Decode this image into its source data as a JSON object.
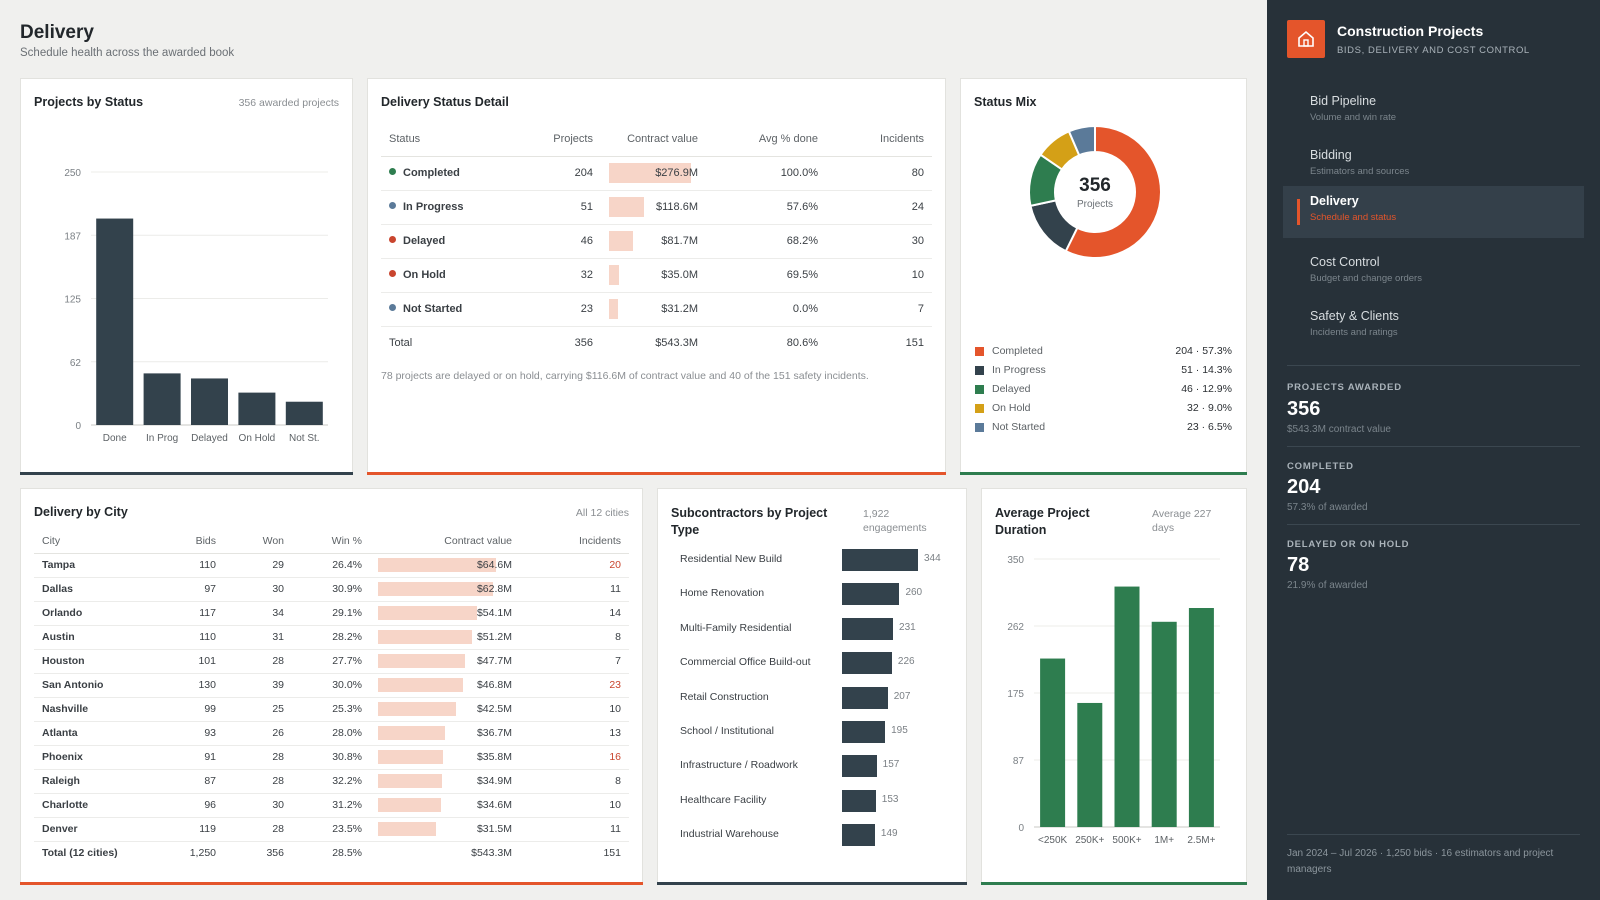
{
  "page": {
    "title": "Delivery",
    "subtitle": "Schedule health across the awarded book"
  },
  "colors": {
    "accent": "#e4552b",
    "dark": "#33424c",
    "green": "#2e7d4f",
    "sidebar": "#273139"
  },
  "projects_by_status": {
    "title": "Projects by Status",
    "note": "356 awarded projects",
    "chart_data": {
      "type": "bar",
      "categories": [
        "Done",
        "In Prog",
        "Delayed",
        "On Hold",
        "Not St."
      ],
      "values": [
        204,
        51,
        46,
        32,
        23
      ],
      "yticks": [
        "250",
        "187",
        "125",
        "62",
        "0"
      ],
      "ylim": [
        0,
        250
      ],
      "grid": true
    }
  },
  "delivery_detail": {
    "title": "Delivery Status Detail",
    "headers": [
      "Status",
      "Projects",
      "Contract value",
      "Avg % done",
      "Incidents"
    ],
    "rows": [
      {
        "status": "Completed",
        "dot": "#2e7d4f",
        "projects": "204",
        "value": "$276.9M",
        "value_num": 276.9,
        "done": "100.0%",
        "incidents": "80"
      },
      {
        "status": "In Progress",
        "dot": "#5b7a99",
        "projects": "51",
        "value": "$118.6M",
        "value_num": 118.6,
        "done": "57.6%",
        "incidents": "24"
      },
      {
        "status": "Delayed",
        "dot": "#c9452e",
        "projects": "46",
        "value": "$81.7M",
        "value_num": 81.7,
        "done": "68.2%",
        "incidents": "30"
      },
      {
        "status": "On Hold",
        "dot": "#c9452e",
        "projects": "32",
        "value": "$35.0M",
        "value_num": 35.0,
        "done": "69.5%",
        "incidents": "10"
      },
      {
        "status": "Not Started",
        "dot": "#5b7a99",
        "projects": "23",
        "value": "$31.2M",
        "value_num": 31.2,
        "done": "0.0%",
        "incidents": "7"
      }
    ],
    "total": {
      "label": "Total",
      "projects": "356",
      "value": "$543.3M",
      "done": "80.6%",
      "incidents": "151"
    },
    "footnote": "78 projects are delayed or on hold, carrying $116.6M of contract value and 40 of the 151 safety incidents."
  },
  "status_mix": {
    "title": "Status Mix",
    "center_value": "356",
    "center_label": "Projects",
    "chart_data": {
      "type": "pie",
      "labels": [
        "Completed",
        "In Progress",
        "Delayed",
        "On Hold",
        "Not Started"
      ],
      "values": [
        204,
        51,
        46,
        32,
        23
      ],
      "colors": [
        "#e4552b",
        "#33424c",
        "#2e7d4f",
        "#d4a017",
        "#5b7a99"
      ]
    },
    "legend": [
      {
        "label": "Completed",
        "value": "204 · 57.3%",
        "color": "#e4552b"
      },
      {
        "label": "In Progress",
        "value": "51 · 14.3%",
        "color": "#33424c"
      },
      {
        "label": "Delayed",
        "value": "46 · 12.9%",
        "color": "#2e7d4f"
      },
      {
        "label": "On Hold",
        "value": "32 · 9.0%",
        "color": "#d4a017"
      },
      {
        "label": "Not Started",
        "value": "23 · 6.5%",
        "color": "#5b7a99"
      }
    ]
  },
  "city": {
    "title": "Delivery by City",
    "note": "All 12 cities",
    "headers": [
      "City",
      "Bids",
      "Won",
      "Win %",
      "Contract value",
      "Incidents"
    ],
    "rows": [
      {
        "city": "Tampa",
        "bids": "110",
        "won": "29",
        "win": "26.4%",
        "value": "$64.6M",
        "value_num": 64.6,
        "incidents": "20",
        "hi": true
      },
      {
        "city": "Dallas",
        "bids": "97",
        "won": "30",
        "win": "30.9%",
        "value": "$62.8M",
        "value_num": 62.8,
        "incidents": "11",
        "hi": false
      },
      {
        "city": "Orlando",
        "bids": "117",
        "won": "34",
        "win": "29.1%",
        "value": "$54.1M",
        "value_num": 54.1,
        "incidents": "14",
        "hi": false
      },
      {
        "city": "Austin",
        "bids": "110",
        "won": "31",
        "win": "28.2%",
        "value": "$51.2M",
        "value_num": 51.2,
        "incidents": "8",
        "hi": false
      },
      {
        "city": "Houston",
        "bids": "101",
        "won": "28",
        "win": "27.7%",
        "value": "$47.7M",
        "value_num": 47.7,
        "incidents": "7",
        "hi": false
      },
      {
        "city": "San Antonio",
        "bids": "130",
        "won": "39",
        "win": "30.0%",
        "value": "$46.8M",
        "value_num": 46.8,
        "incidents": "23",
        "hi": true
      },
      {
        "city": "Nashville",
        "bids": "99",
        "won": "25",
        "win": "25.3%",
        "value": "$42.5M",
        "value_num": 42.5,
        "incidents": "10",
        "hi": false
      },
      {
        "city": "Atlanta",
        "bids": "93",
        "won": "26",
        "win": "28.0%",
        "value": "$36.7M",
        "value_num": 36.7,
        "incidents": "13",
        "hi": false
      },
      {
        "city": "Phoenix",
        "bids": "91",
        "won": "28",
        "win": "30.8%",
        "value": "$35.8M",
        "value_num": 35.8,
        "incidents": "16",
        "hi": true
      },
      {
        "city": "Raleigh",
        "bids": "87",
        "won": "28",
        "win": "32.2%",
        "value": "$34.9M",
        "value_num": 34.9,
        "incidents": "8",
        "hi": false
      },
      {
        "city": "Charlotte",
        "bids": "96",
        "won": "30",
        "win": "31.2%",
        "value": "$34.6M",
        "value_num": 34.6,
        "incidents": "10",
        "hi": false
      },
      {
        "city": "Denver",
        "bids": "119",
        "won": "28",
        "win": "23.5%",
        "value": "$31.5M",
        "value_num": 31.5,
        "incidents": "11",
        "hi": false
      }
    ],
    "total": {
      "city": "Total (12 cities)",
      "bids": "1,250",
      "won": "356",
      "win": "28.5%",
      "value": "$543.3M",
      "incidents": "151"
    }
  },
  "subs": {
    "title": "Subcontractors by Project Type",
    "note": "1,922 engagements",
    "chart_data": {
      "type": "bar",
      "orientation": "horizontal",
      "categories": [
        "Residential New Build",
        "Home Renovation",
        "Multi-Family Residential",
        "Commercial Office Build-out",
        "Retail Construction",
        "School / Institutional",
        "Infrastructure / Roadwork",
        "Healthcare Facility",
        "Industrial Warehouse"
      ],
      "values": [
        344,
        260,
        231,
        226,
        207,
        195,
        157,
        153,
        149
      ]
    }
  },
  "duration": {
    "title": "Average Project Duration",
    "note": "Average 227 days",
    "chart_data": {
      "type": "bar",
      "categories": [
        "<250K",
        "250K+",
        "500K+",
        "1M+",
        "2.5M+"
      ],
      "values": [
        220,
        162,
        314,
        268,
        286
      ],
      "yticks": [
        "350",
        "262",
        "175",
        "87",
        "0"
      ],
      "ylim": [
        0,
        350
      ],
      "grid": true
    }
  },
  "sidebar": {
    "brand": "Construction Projects",
    "brand_sub": "BIDS, DELIVERY AND COST CONTROL",
    "nav": [
      {
        "label": "Bid Pipeline",
        "sub": "Volume and win rate"
      },
      {
        "label": "Bidding",
        "sub": "Estimators and sources"
      },
      {
        "label": "Delivery",
        "sub": "Schedule and status"
      },
      {
        "label": "Cost Control",
        "sub": "Budget and change orders"
      },
      {
        "label": "Safety & Clients",
        "sub": "Incidents and ratings"
      }
    ],
    "kpis": [
      {
        "label": "PROJECTS AWARDED",
        "value": "356",
        "sub": "$543.3M contract value"
      },
      {
        "label": "COMPLETED",
        "value": "204",
        "sub": "57.3% of awarded"
      },
      {
        "label": "DELAYED OR ON HOLD",
        "value": "78",
        "sub": "21.9% of awarded"
      }
    ],
    "footer": "Jan 2024 – Jul 2026 · 1,250 bids · 16 estimators and project managers"
  }
}
